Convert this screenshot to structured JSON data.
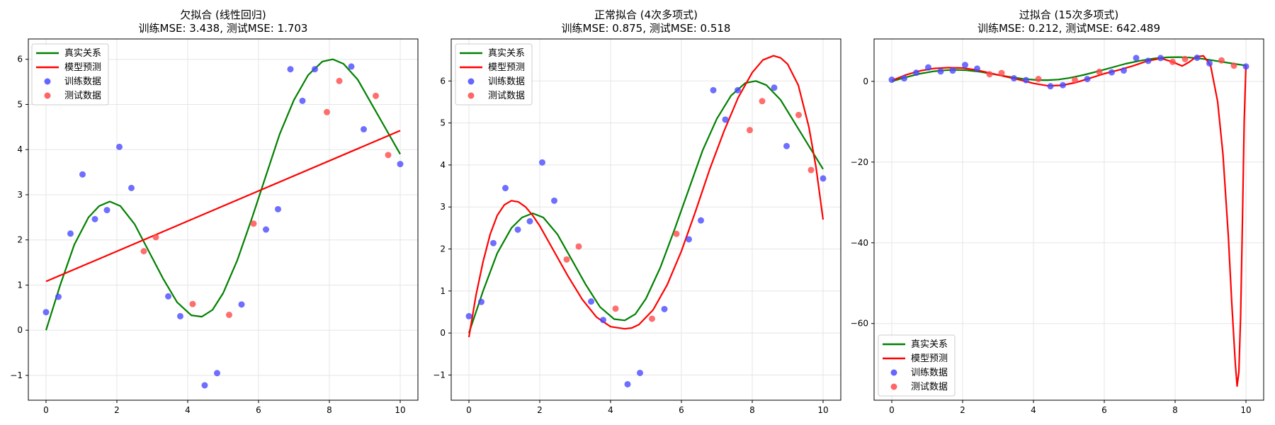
{
  "colors": {
    "true_line": "#008000",
    "pred_line": "#ff0000",
    "train_pts": "#4a4aff",
    "test_pts": "#ff4a4a",
    "grid": "#e5e5e5"
  },
  "chart_data": [
    {
      "type": "line",
      "title": "欠拟合 (线性回归)",
      "subtitle": "训练MSE: 3.438, 测试MSE: 1.703",
      "xlim": [
        -0.5,
        10.5
      ],
      "ylim": [
        -1.55,
        6.45
      ],
      "xticks": [
        0,
        2,
        4,
        6,
        8,
        10
      ],
      "yticks": [
        -1,
        0,
        1,
        2,
        3,
        4,
        5,
        6
      ],
      "ytick_labels": [
        "−1",
        "0",
        "1",
        "2",
        "3",
        "4",
        "5",
        "6"
      ],
      "grid": true,
      "legend_position": "top-left",
      "legend": [
        "真实关系",
        "模型预测",
        "训练数据",
        "测试数据"
      ],
      "true_curve": {
        "x": [
          0,
          0.4,
          0.8,
          1.2,
          1.5,
          1.8,
          2.1,
          2.5,
          2.9,
          3.3,
          3.7,
          4.1,
          4.4,
          4.7,
          5.0,
          5.4,
          5.8,
          6.2,
          6.6,
          7.0,
          7.4,
          7.8,
          8.1,
          8.4,
          8.8,
          9.2,
          9.6,
          10
        ],
        "y": [
          0,
          1.0,
          1.9,
          2.5,
          2.75,
          2.85,
          2.75,
          2.35,
          1.75,
          1.15,
          0.62,
          0.33,
          0.3,
          0.45,
          0.82,
          1.55,
          2.45,
          3.4,
          4.35,
          5.1,
          5.65,
          5.95,
          6.0,
          5.9,
          5.55,
          5.0,
          4.45,
          3.9
        ]
      },
      "pred_curve": {
        "x": [
          0,
          10
        ],
        "y": [
          1.08,
          4.42
        ]
      },
      "train_points": {
        "x": [
          0,
          0.35,
          0.69,
          1.03,
          1.38,
          1.72,
          2.07,
          2.41,
          3.45,
          3.79,
          4.48,
          4.83,
          5.52,
          6.21,
          6.55,
          6.9,
          7.24,
          7.59,
          8.62,
          8.97,
          10
        ],
        "y": [
          0.4,
          0.74,
          2.14,
          3.45,
          2.46,
          2.66,
          4.06,
          3.15,
          0.75,
          0.31,
          -1.22,
          -0.95,
          0.57,
          2.23,
          2.68,
          5.78,
          5.08,
          5.78,
          5.84,
          4.45,
          3.68
        ]
      },
      "test_points": {
        "x": [
          2.76,
          3.1,
          4.14,
          5.17,
          5.86,
          7.93,
          8.28,
          9.31,
          9.66
        ],
        "y": [
          1.75,
          2.06,
          0.58,
          0.34,
          2.36,
          4.83,
          5.52,
          5.19,
          3.88
        ]
      }
    },
    {
      "type": "line",
      "title": "正常拟合 (4次多项式)",
      "subtitle": "训练MSE: 0.875, 测试MSE: 0.518",
      "xlim": [
        -0.5,
        10.5
      ],
      "ylim": [
        -1.6,
        7.0
      ],
      "xticks": [
        0,
        2,
        4,
        6,
        8,
        10
      ],
      "yticks": [
        -1,
        0,
        1,
        2,
        3,
        4,
        5,
        6
      ],
      "ytick_labels": [
        "−1",
        "0",
        "1",
        "2",
        "3",
        "4",
        "5",
        "6"
      ],
      "grid": true,
      "legend_position": "top-left",
      "legend": [
        "真实关系",
        "模型预测",
        "训练数据",
        "测试数据"
      ],
      "true_curve": {
        "x": [
          0,
          0.4,
          0.8,
          1.2,
          1.5,
          1.8,
          2.1,
          2.5,
          2.9,
          3.3,
          3.7,
          4.1,
          4.4,
          4.7,
          5.0,
          5.4,
          5.8,
          6.2,
          6.6,
          7.0,
          7.4,
          7.8,
          8.1,
          8.4,
          8.8,
          9.2,
          9.6,
          10
        ],
        "y": [
          0,
          1.0,
          1.9,
          2.5,
          2.75,
          2.85,
          2.75,
          2.35,
          1.75,
          1.15,
          0.62,
          0.33,
          0.3,
          0.45,
          0.82,
          1.55,
          2.45,
          3.4,
          4.35,
          5.1,
          5.65,
          5.95,
          6.0,
          5.9,
          5.55,
          5.0,
          4.45,
          3.9
        ]
      },
      "pred_curve": {
        "x": [
          0,
          0.2,
          0.4,
          0.6,
          0.8,
          1.0,
          1.2,
          1.4,
          1.6,
          1.8,
          2.0,
          2.4,
          2.8,
          3.2,
          3.6,
          4.0,
          4.4,
          4.6,
          4.8,
          5.2,
          5.6,
          6.0,
          6.4,
          6.8,
          7.2,
          7.6,
          8.0,
          8.3,
          8.6,
          8.8,
          9.0,
          9.3,
          9.6,
          9.8,
          10
        ],
        "y": [
          -0.1,
          0.9,
          1.7,
          2.35,
          2.8,
          3.05,
          3.15,
          3.12,
          3.0,
          2.8,
          2.55,
          1.95,
          1.35,
          0.8,
          0.38,
          0.15,
          0.1,
          0.12,
          0.2,
          0.55,
          1.15,
          1.95,
          2.9,
          3.9,
          4.8,
          5.6,
          6.2,
          6.5,
          6.6,
          6.55,
          6.4,
          5.9,
          4.9,
          3.95,
          2.7
        ]
      },
      "train_points": {
        "x": [
          0,
          0.35,
          0.69,
          1.03,
          1.38,
          1.72,
          2.07,
          2.41,
          3.45,
          3.79,
          4.48,
          4.83,
          5.52,
          6.21,
          6.55,
          6.9,
          7.24,
          7.59,
          8.62,
          8.97,
          10
        ],
        "y": [
          0.4,
          0.74,
          2.14,
          3.45,
          2.46,
          2.66,
          4.06,
          3.15,
          0.75,
          0.31,
          -1.22,
          -0.95,
          0.57,
          2.23,
          2.68,
          5.78,
          5.08,
          5.78,
          5.84,
          4.45,
          3.68
        ]
      },
      "test_points": {
        "x": [
          2.76,
          3.1,
          4.14,
          5.17,
          5.86,
          7.93,
          8.28,
          9.31,
          9.66
        ],
        "y": [
          1.75,
          2.06,
          0.58,
          0.34,
          2.36,
          4.83,
          5.52,
          5.19,
          3.88
        ]
      }
    },
    {
      "type": "line",
      "title": "过拟合 (15次多项式)",
      "subtitle": "训练MSE: 0.212, 测试MSE: 642.489",
      "xlim": [
        -0.5,
        10.5
      ],
      "ylim": [
        -79,
        10.5
      ],
      "xticks": [
        0,
        2,
        4,
        6,
        8,
        10
      ],
      "yticks": [
        -60,
        -40,
        -20,
        0
      ],
      "ytick_labels": [
        "−60",
        "−40",
        "−20",
        "0"
      ],
      "grid": true,
      "legend_position": "bottom-left",
      "legend": [
        "真实关系",
        "模型预测",
        "训练数据",
        "测试数据"
      ],
      "true_curve": {
        "x": [
          0,
          0.4,
          0.8,
          1.2,
          1.5,
          1.8,
          2.1,
          2.5,
          2.9,
          3.3,
          3.7,
          4.1,
          4.4,
          4.7,
          5.0,
          5.4,
          5.8,
          6.2,
          6.6,
          7.0,
          7.4,
          7.8,
          8.1,
          8.4,
          8.8,
          9.2,
          9.6,
          10
        ],
        "y": [
          0,
          1.0,
          1.9,
          2.5,
          2.75,
          2.85,
          2.75,
          2.35,
          1.75,
          1.15,
          0.62,
          0.33,
          0.3,
          0.45,
          0.82,
          1.55,
          2.45,
          3.4,
          4.35,
          5.1,
          5.65,
          5.95,
          6.0,
          5.9,
          5.55,
          5.0,
          4.45,
          3.9
        ]
      },
      "pred_curve": {
        "x": [
          0,
          0.4,
          0.8,
          1.2,
          1.6,
          2.0,
          2.4,
          2.8,
          3.2,
          3.6,
          4.0,
          4.4,
          4.8,
          5.2,
          5.6,
          6.0,
          6.4,
          6.8,
          7.2,
          7.6,
          7.9,
          8.2,
          8.4,
          8.6,
          8.8,
          9.0,
          9.2,
          9.35,
          9.5,
          9.6,
          9.7,
          9.75,
          9.8,
          9.85,
          9.9,
          9.95,
          10
        ],
        "y": [
          0.2,
          1.6,
          2.6,
          3.2,
          3.4,
          3.3,
          2.8,
          2.0,
          1.2,
          0.4,
          -0.5,
          -1.1,
          -1.0,
          -0.3,
          0.8,
          1.9,
          2.8,
          3.8,
          5.0,
          5.7,
          4.9,
          3.8,
          4.8,
          6.1,
          6.3,
          4.0,
          -5,
          -18,
          -38,
          -55,
          -70,
          -75.5,
          -72,
          -58,
          -35,
          -10,
          4.0
        ]
      },
      "train_points": {
        "x": [
          0,
          0.35,
          0.69,
          1.03,
          1.38,
          1.72,
          2.07,
          2.41,
          3.45,
          3.79,
          4.48,
          4.83,
          5.52,
          6.21,
          6.55,
          6.9,
          7.24,
          7.59,
          8.62,
          8.97,
          10
        ],
        "y": [
          0.4,
          0.74,
          2.14,
          3.45,
          2.46,
          2.66,
          4.06,
          3.15,
          0.75,
          0.31,
          -1.22,
          -0.95,
          0.57,
          2.23,
          2.68,
          5.78,
          5.08,
          5.78,
          5.84,
          4.45,
          3.68
        ]
      },
      "test_points": {
        "x": [
          2.76,
          3.1,
          4.14,
          5.17,
          5.86,
          7.93,
          8.28,
          9.31,
          9.66
        ],
        "y": [
          1.75,
          2.06,
          0.58,
          0.34,
          2.36,
          4.83,
          5.52,
          5.19,
          3.88
        ]
      }
    }
  ]
}
